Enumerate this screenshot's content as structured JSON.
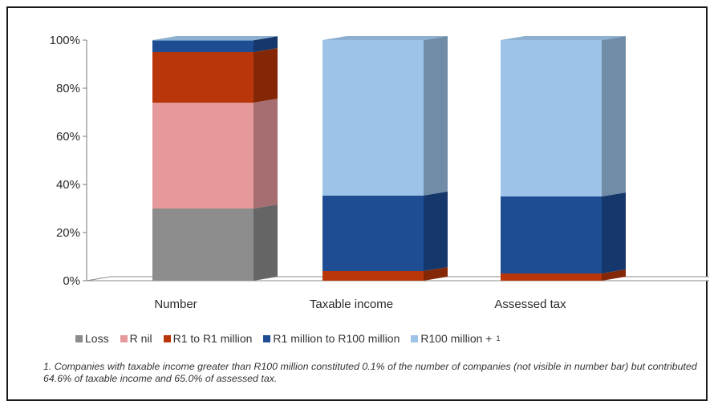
{
  "chart_data": {
    "type": "bar",
    "stacked": true,
    "percent": true,
    "categories": [
      "Number",
      "Taxable income",
      "Assessed tax"
    ],
    "ylim": [
      0,
      100
    ],
    "yticks": [
      "0%",
      "20%",
      "40%",
      "60%",
      "80%",
      "100%"
    ],
    "series": [
      {
        "name": "Loss",
        "color": "#8c8c8c",
        "values": [
          30,
          0,
          0
        ]
      },
      {
        "name": "R nil",
        "color": "#e6999b",
        "values": [
          44,
          0,
          0
        ]
      },
      {
        "name": "R1 to R1 million",
        "color": "#b8360a",
        "values": [
          21,
          4,
          3
        ]
      },
      {
        "name": "R1 million to R100 million",
        "color": "#1f4d94",
        "values": [
          4.9,
          31.4,
          32
        ]
      },
      {
        "name": "R100 million + ",
        "sup": "1",
        "color": "#9dc3e8",
        "values": [
          0.1,
          64.6,
          65
        ]
      }
    ],
    "legend_position": "bottom",
    "footnote": "1. Companies with taxable income greater than R100 million constituted 0.1% of the number of companies (not visible in number bar) but contributed 64.6% of taxable income and 65.0% of assessed tax."
  }
}
